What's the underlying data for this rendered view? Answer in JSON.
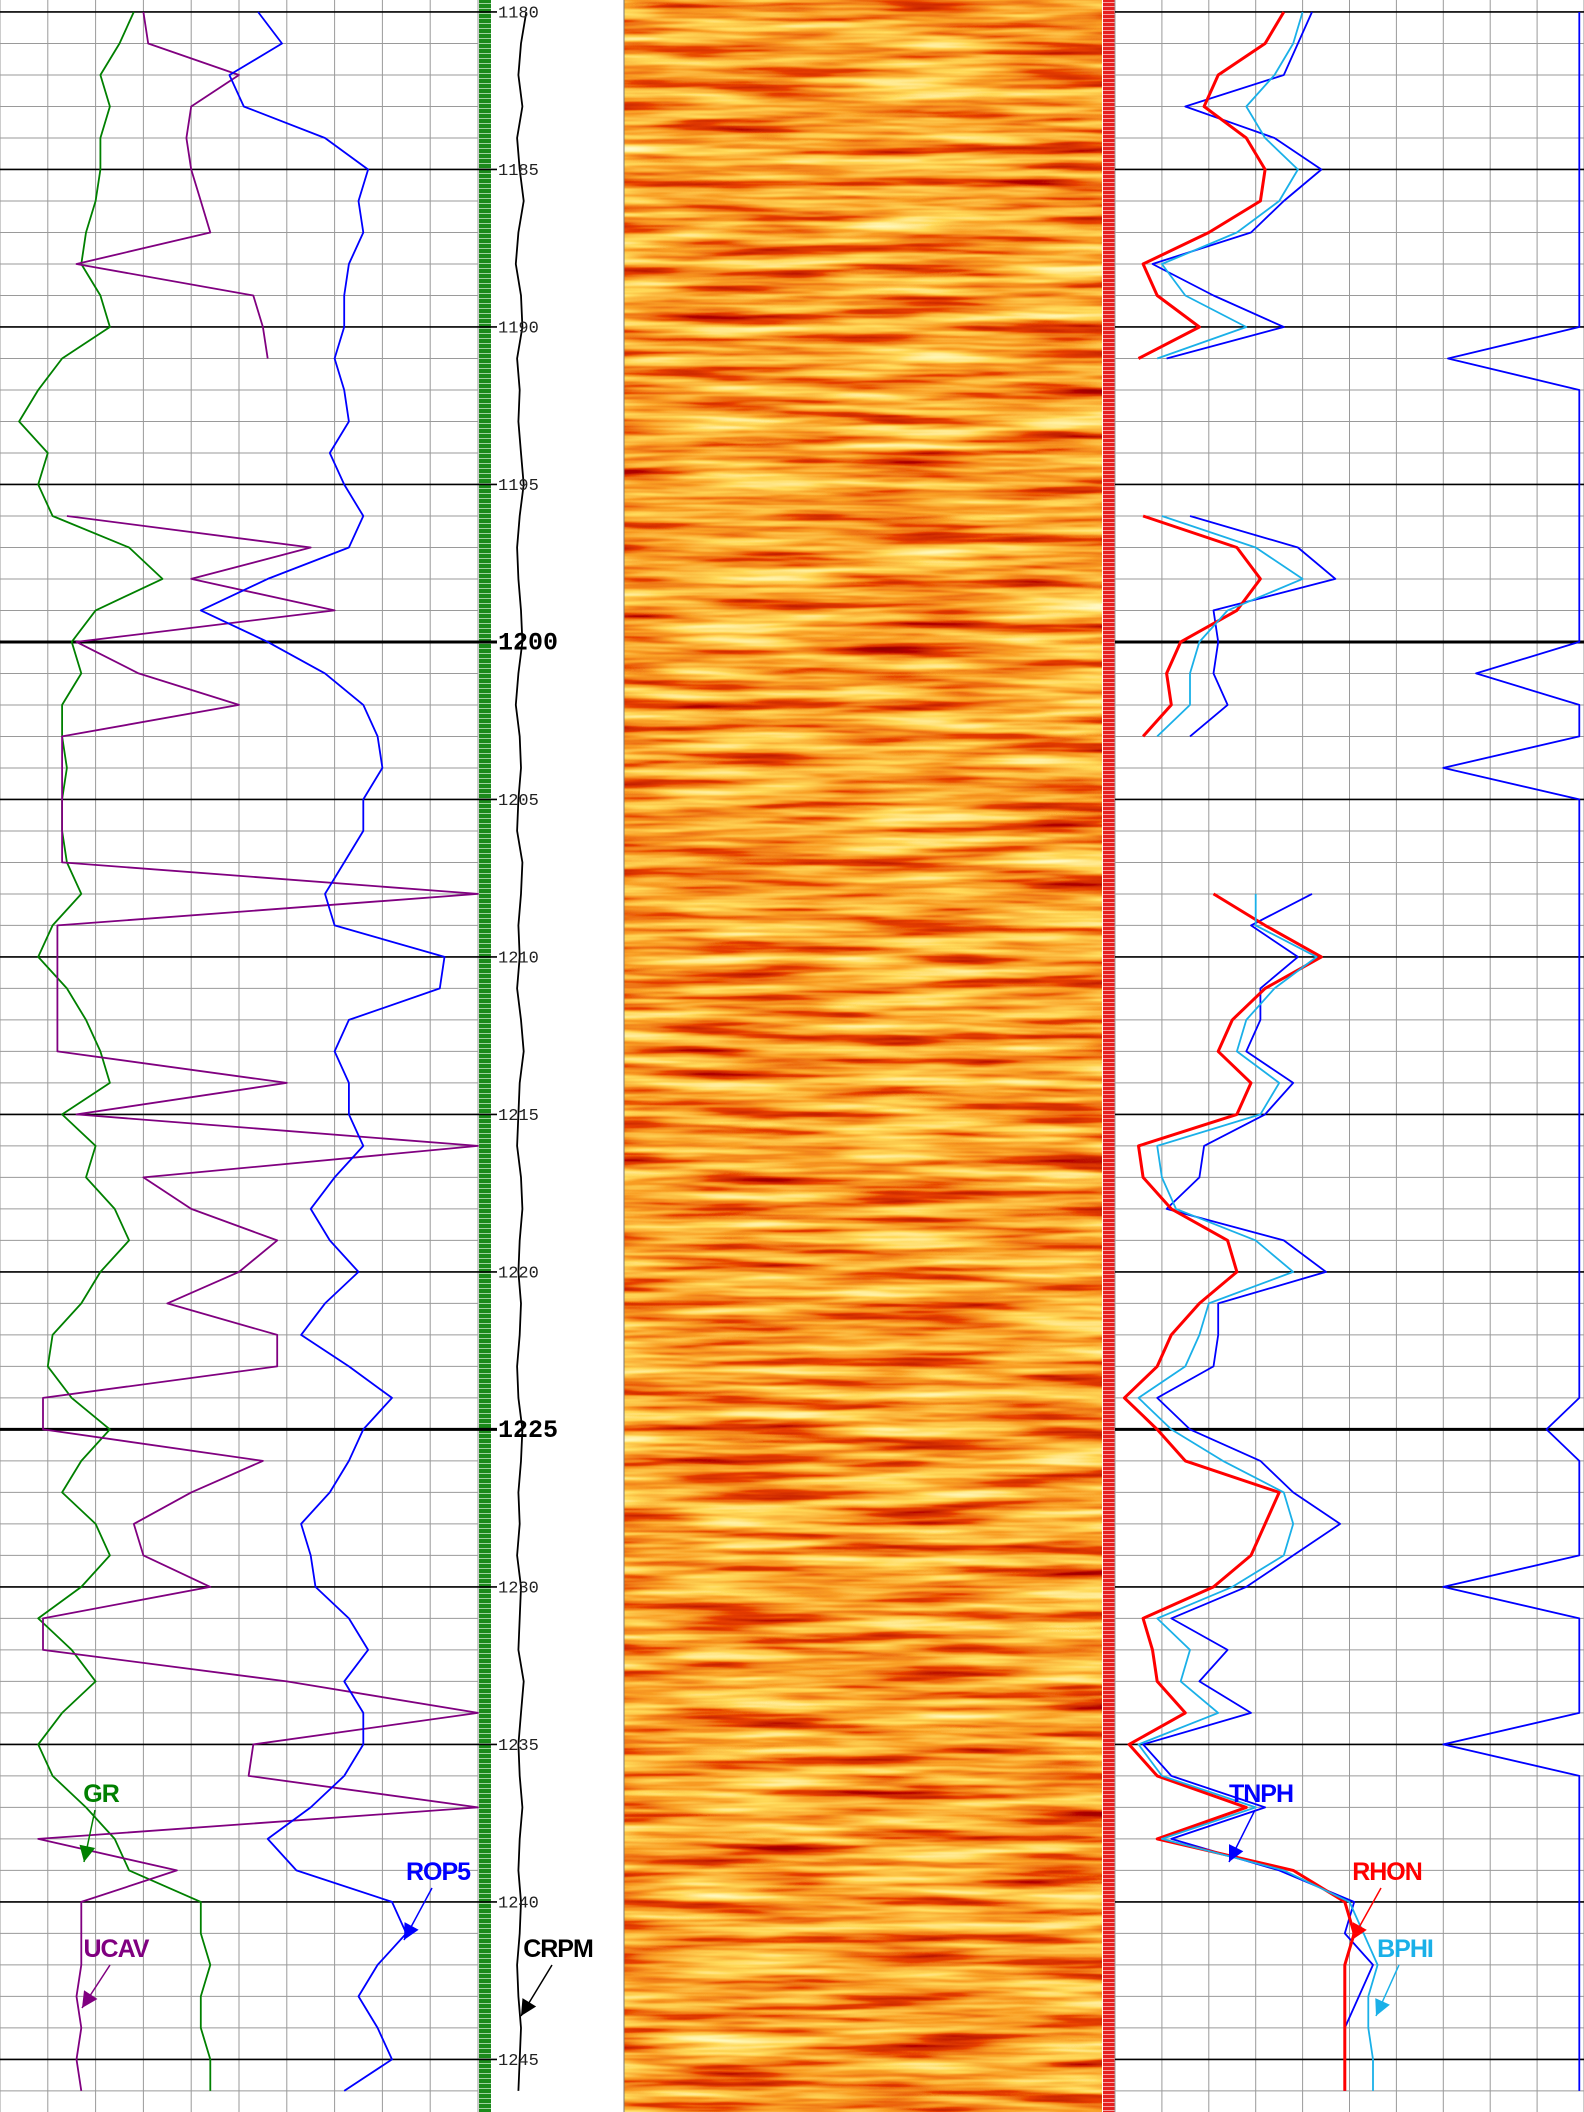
{
  "chart_data": {
    "type": "well-log",
    "ylim": [
      1179.62,
      1246.67
    ],
    "yticks": [
      1180,
      1185,
      1190,
      1195,
      1200,
      1205,
      1210,
      1215,
      1220,
      1225,
      1230,
      1235,
      1240,
      1245
    ],
    "depth": [
      1180,
      1181,
      1182,
      1183,
      1184,
      1185,
      1186,
      1187,
      1188,
      1189,
      1190,
      1191,
      1192,
      1193,
      1194,
      1195,
      1196,
      1197,
      1198,
      1199,
      1200,
      1201,
      1202,
      1203,
      1204,
      1205,
      1206,
      1207,
      1208,
      1209,
      1210,
      1211,
      1212,
      1213,
      1214,
      1215,
      1216,
      1217,
      1218,
      1219,
      1220,
      1221,
      1222,
      1223,
      1224,
      1225,
      1226,
      1227,
      1228,
      1229,
      1230,
      1231,
      1232,
      1233,
      1234,
      1235,
      1236,
      1237,
      1238,
      1239,
      1240,
      1241,
      1242,
      1243,
      1244,
      1245,
      1246
    ],
    "grid": true,
    "tracks": [
      {
        "xlim": [
          0,
          10
        ],
        "xticks": [
          0,
          1,
          2,
          3,
          4,
          5,
          6,
          7,
          8,
          9,
          10
        ],
        "series": [
          {
            "name": "GR",
            "color": "#008000",
            "values": [
              2.8,
              2.5,
              2.1,
              2.3,
              2.1,
              2.1,
              2.0,
              1.8,
              1.7,
              2.1,
              2.3,
              1.3,
              0.8,
              0.4,
              1.0,
              0.8,
              1.1,
              2.7,
              3.4,
              2.0,
              1.5,
              1.7,
              1.3,
              1.3,
              1.4,
              1.3,
              1.3,
              1.4,
              1.7,
              1.1,
              0.8,
              1.4,
              1.8,
              2.1,
              2.3,
              1.3,
              2.0,
              1.8,
              2.4,
              2.7,
              2.1,
              1.7,
              1.1,
              1.0,
              1.5,
              2.3,
              1.7,
              1.3,
              2.0,
              2.3,
              1.7,
              0.8,
              1.5,
              2.0,
              1.3,
              0.8,
              1.1,
              1.8,
              2.4,
              2.7,
              4.2,
              4.2,
              4.4,
              4.2,
              4.2,
              4.4,
              4.4
            ]
          },
          {
            "name": "UCAV",
            "color": "#800080",
            "values": [
              3.0,
              3.1,
              5.0,
              4.0,
              3.9,
              4.0,
              4.2,
              4.4,
              1.6,
              5.3,
              5.5,
              5.6,
              null,
              null,
              null,
              null,
              1.4,
              6.5,
              4.0,
              7.0,
              1.6,
              2.9,
              5.0,
              1.3,
              1.3,
              1.3,
              1.3,
              1.3,
              10,
              1.2,
              1.2,
              1.2,
              1.2,
              1.2,
              6.0,
              1.6,
              10,
              3.0,
              4.0,
              5.8,
              5.0,
              3.5,
              5.8,
              5.8,
              0.9,
              0.9,
              5.5,
              4.0,
              2.8,
              3.0,
              4.4,
              0.9,
              0.9,
              6.0,
              10,
              5.3,
              5.2,
              10,
              0.8,
              3.7,
              1.7,
              1.7,
              1.7,
              1.6,
              1.7,
              1.6,
              1.7
            ]
          },
          {
            "name": "ROP5",
            "color": "#0000ff",
            "values": [
              5.4,
              5.9,
              4.8,
              5.1,
              6.8,
              7.7,
              7.5,
              7.6,
              7.3,
              7.2,
              7.2,
              7.0,
              7.2,
              7.3,
              6.9,
              7.2,
              7.6,
              7.3,
              5.6,
              4.2,
              5.6,
              6.8,
              7.6,
              7.9,
              8.0,
              7.6,
              7.6,
              7.2,
              6.8,
              7.0,
              9.3,
              9.2,
              7.3,
              7.0,
              7.3,
              7.3,
              7.6,
              7.0,
              6.5,
              6.9,
              7.5,
              6.8,
              6.3,
              7.3,
              8.2,
              7.6,
              7.3,
              6.9,
              6.3,
              6.5,
              6.6,
              7.3,
              7.7,
              7.2,
              7.6,
              7.6,
              7.2,
              6.5,
              5.6,
              6.2,
              8.2,
              8.5,
              7.9,
              7.5,
              7.9,
              8.2,
              7.2
            ]
          }
        ]
      },
      {
        "xlim": [
          0,
          10
        ],
        "series": [
          {
            "name": "CRPM",
            "color": "#000000",
            "values": [
              2.6,
              2.2,
              2.0,
              2.3,
              1.9,
              2.1,
              2.4,
              2.0,
              1.8,
              2.2,
              2.3,
              1.9,
              2.1,
              2.0,
              2.2,
              2.4,
              2.1,
              1.9,
              2.0,
              2.2,
              2.3,
              2.0,
              1.8,
              2.1,
              2.2,
              2.0,
              1.9,
              2.3,
              2.2,
              2.0,
              2.1,
              1.9,
              2.2,
              2.4,
              2.1,
              2.0,
              1.9,
              2.2,
              2.3,
              2.1,
              2.0,
              2.2,
              2.1,
              1.9,
              2.0,
              2.3,
              2.2,
              2.0,
              2.1,
              1.9,
              2.2,
              2.1,
              2.0,
              2.4,
              2.2,
              2.0,
              2.1,
              2.3,
              2.1,
              2.0,
              2.2,
              2.1,
              1.9,
              2.0,
              2.2,
              2.1,
              2.0
            ]
          }
        ]
      },
      {
        "xlim": [
          0,
          10
        ],
        "xticks": [
          0,
          1,
          2,
          3,
          4,
          5,
          6,
          7,
          8,
          9,
          10
        ],
        "series": [
          {
            "name": "TNPH",
            "color": "#0000ff",
            "values": [
              4.2,
              3.9,
              3.6,
              1.5,
              3.4,
              4.4,
              3.6,
              2.9,
              0.8,
              2.1,
              3.6,
              1.1,
              null,
              null,
              null,
              null,
              1.6,
              3.9,
              4.7,
              2.1,
              2.2,
              2.1,
              2.4,
              1.6,
              null,
              null,
              null,
              null,
              4.2,
              2.9,
              3.9,
              3.1,
              3.1,
              2.8,
              3.8,
              3.2,
              1.9,
              1.8,
              1.1,
              3.6,
              4.5,
              2.2,
              2.2,
              2.1,
              0.9,
              1.6,
              3.1,
              3.8,
              4.8,
              3.8,
              2.8,
              1.2,
              2.4,
              1.8,
              2.9,
              0.6,
              1.2,
              3.2,
              1.2,
              3.5,
              5.1,
              4.9,
              5.5,
              5.2,
              4.9,
              4.9,
              4.9
            ]
          },
          {
            "name": "RHON",
            "color": "#ff0000",
            "values": [
              3.6,
              3.2,
              2.2,
              1.9,
              2.8,
              3.2,
              3.1,
              2.0,
              0.6,
              0.9,
              1.8,
              0.5,
              null,
              null,
              null,
              null,
              0.6,
              2.6,
              3.1,
              2.6,
              1.4,
              1.1,
              1.2,
              0.6,
              null,
              null,
              null,
              null,
              2.1,
              3.2,
              4.4,
              3.2,
              2.5,
              2.2,
              2.9,
              2.6,
              0.5,
              0.6,
              1.2,
              2.4,
              2.6,
              1.8,
              1.2,
              0.9,
              0.2,
              0.9,
              1.5,
              3.5,
              3.2,
              2.9,
              2.1,
              0.6,
              0.8,
              0.9,
              1.5,
              0.3,
              0.9,
              2.8,
              0.9,
              3.8,
              4.9,
              5.1,
              4.9,
              4.9,
              4.9,
              4.9,
              4.9
            ]
          },
          {
            "name": "BPHI",
            "color": "#1ab0e8",
            "values": [
              4.0,
              3.8,
              3.4,
              2.8,
              3.2,
              3.9,
              3.5,
              2.6,
              1.0,
              1.5,
              2.8,
              0.9,
              null,
              null,
              null,
              null,
              1.0,
              3.0,
              4.0,
              2.4,
              1.8,
              1.6,
              1.6,
              0.9,
              null,
              null,
              null,
              null,
              3.0,
              3.0,
              4.3,
              3.4,
              2.8,
              2.6,
              3.5,
              3.1,
              0.9,
              1.0,
              1.3,
              3.0,
              3.8,
              2.0,
              1.8,
              1.5,
              0.5,
              1.2,
              2.3,
              3.6,
              3.8,
              3.6,
              2.5,
              0.9,
              1.6,
              1.4,
              2.2,
              0.5,
              1.0,
              3.0,
              1.0,
              3.6,
              5.0,
              5.3,
              5.6,
              5.4,
              5.4,
              5.5,
              5.5
            ]
          },
          {
            "color": "#0000ff",
            "values": [
              9.9,
              9.9,
              9.9,
              9.9,
              9.9,
              9.9,
              9.9,
              9.9,
              9.9,
              9.9,
              9.9,
              7.1,
              9.9,
              9.9,
              9.9,
              9.9,
              9.9,
              9.9,
              9.9,
              9.9,
              9.9,
              7.7,
              9.9,
              9.9,
              7.0,
              9.9,
              9.9,
              9.9,
              9.9,
              9.9,
              9.9,
              9.9,
              9.9,
              9.9,
              9.9,
              9.9,
              9.9,
              9.9,
              9.9,
              9.9,
              9.9,
              9.9,
              9.9,
              9.9,
              9.9,
              9.2,
              9.9,
              9.9,
              9.9,
              9.9,
              7.0,
              9.9,
              9.9,
              9.9,
              9.9,
              7.0,
              9.9,
              9.9,
              9.9,
              9.9,
              9.9,
              9.9,
              9.9,
              9.9,
              9.9,
              9.9,
              9.9
            ]
          }
        ]
      }
    ]
  }
}
